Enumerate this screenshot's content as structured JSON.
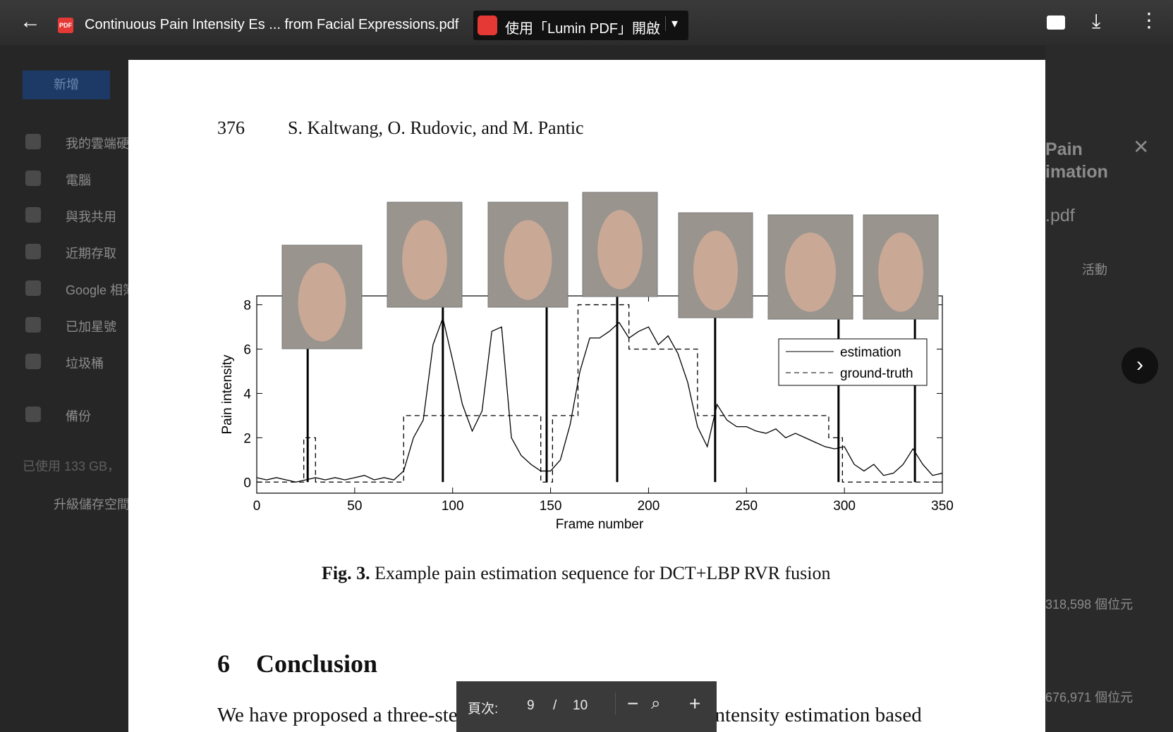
{
  "viewer": {
    "file_name": "Continuous Pain Intensity Es ... from Facial Expressions.pdf",
    "pdf_badge": "PDF",
    "open_with": "使用「Lumin PDF」開啟",
    "page_label": "頁次:",
    "page_current": "9",
    "page_sep": "/",
    "page_total": "10"
  },
  "drive": {
    "new_button": "新增",
    "nav": [
      "我的雲端硬碟",
      "電腦",
      "與我共用",
      "近期存取",
      "Google 相簿",
      "已加星號",
      "垃圾桶",
      "備份"
    ],
    "storage": "已使用 133 GB，",
    "upgrade": "升級儲存空間",
    "details": {
      "title_1": "Pain",
      "title_2": "imation",
      "title_3": ".pdf",
      "tab": "活動",
      "size_1": "318,598 個位元",
      "size_2": "676,971 個位元"
    }
  },
  "document": {
    "page_number": "376",
    "authors": "S. Kaltwang, O. Rudovic, and M. Pantic",
    "caption_label": "Fig. 3.",
    "caption": "Example pain estimation sequence for DCT+LBP RVR fusion",
    "section_number": "6",
    "section_title": "Conclusion",
    "body": "We have proposed a three-step approach to continuous pain intensity estimation based"
  },
  "chart_data": {
    "type": "line",
    "xlabel": "Frame number",
    "ylabel": "Pain intensity",
    "xlim": [
      0,
      350
    ],
    "ylim": [
      -0.5,
      8.4
    ],
    "xticks": [
      0,
      50,
      100,
      150,
      200,
      250,
      300,
      350
    ],
    "yticks": [
      0,
      2,
      4,
      6,
      8
    ],
    "snapshot_frames": [
      26,
      95,
      148,
      184,
      234,
      297,
      336
    ],
    "series": [
      {
        "name": "estimation",
        "color": "#000000",
        "dash": false,
        "x": [
          0,
          5,
          10,
          15,
          20,
          25,
          30,
          35,
          40,
          45,
          50,
          55,
          60,
          65,
          70,
          75,
          80,
          85,
          90,
          95,
          100,
          105,
          110,
          115,
          120,
          125,
          130,
          135,
          140,
          145,
          150,
          155,
          160,
          165,
          170,
          175,
          180,
          185,
          190,
          195,
          200,
          205,
          210,
          215,
          220,
          225,
          230,
          235,
          240,
          245,
          250,
          255,
          260,
          265,
          270,
          275,
          280,
          285,
          290,
          295,
          300,
          305,
          310,
          315,
          320,
          325,
          330,
          335,
          340,
          345,
          350
        ],
        "values": [
          0.2,
          0.1,
          0.2,
          0.1,
          0,
          0.1,
          0.2,
          0.1,
          0.2,
          0.1,
          0.2,
          0.3,
          0.1,
          0.2,
          0.1,
          0.5,
          2.0,
          2.8,
          6.2,
          7.4,
          5.5,
          3.5,
          2.3,
          3.2,
          6.8,
          7.0,
          2.0,
          1.2,
          0.8,
          0.5,
          0.5,
          1.0,
          2.6,
          5.0,
          6.5,
          6.5,
          6.8,
          7.2,
          6.5,
          6.8,
          7.0,
          6.2,
          6.6,
          5.8,
          4.5,
          2.5,
          1.6,
          3.5,
          2.8,
          2.5,
          2.5,
          2.3,
          2.2,
          2.4,
          2.0,
          2.2,
          2.0,
          1.8,
          1.6,
          1.5,
          1.6,
          0.8,
          0.5,
          0.8,
          0.3,
          0.4,
          0.8,
          1.5,
          0.8,
          0.3,
          0.4
        ]
      },
      {
        "name": "ground-truth",
        "color": "#000000",
        "dash": true,
        "x": [
          0,
          24,
          24,
          30,
          30,
          75,
          75,
          145,
          145,
          151,
          151,
          164,
          164,
          190,
          190,
          225,
          225,
          292,
          292,
          299,
          299,
          350
        ],
        "values": [
          0,
          0,
          2,
          2,
          0,
          0,
          3,
          3,
          0,
          0,
          3,
          3,
          8,
          8,
          6,
          6,
          3,
          3,
          2,
          2,
          0,
          0
        ]
      }
    ]
  }
}
